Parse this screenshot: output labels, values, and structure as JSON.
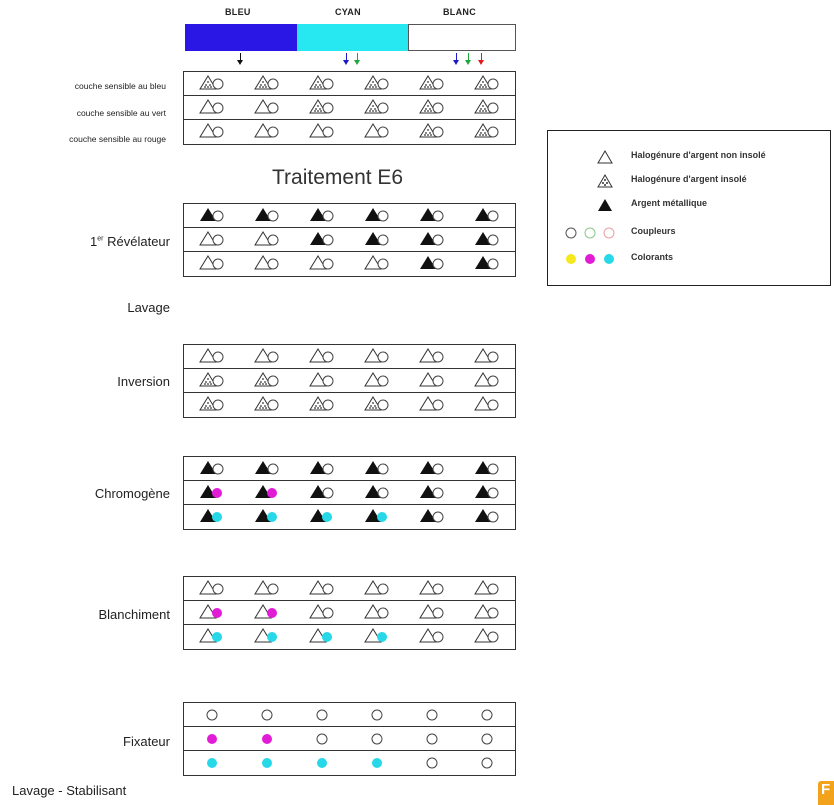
{
  "header": {
    "bleu": "BLEU",
    "cyan": "CYAN",
    "blanc": "BLANC",
    "colors": {
      "bleu": "#2a17e6",
      "cyan": "#27e8f0",
      "blanc": "#ffffff"
    }
  },
  "layer_labels": [
    "couche sensible au bleu",
    "couche sensible au vert",
    "couche sensible au rouge"
  ],
  "title": "Traitement E6",
  "steps": {
    "revelateur_main": "1",
    "revelateur_sup": "er",
    "revelateur_rest": " Révélateur",
    "lavage": "Lavage",
    "inversion": "Inversion",
    "chromogene": "Chromogène",
    "blanchiment": "Blanchiment",
    "fixateur": "Fixateur",
    "lavage_stabilisant": "Lavage - Stabilisant"
  },
  "legend": {
    "items": [
      {
        "icon": "outline-triangle-icon",
        "text": "Halogénure d'argent non insolé"
      },
      {
        "icon": "exposed-triangle-icon",
        "text": "Halogénure d'argent insolé"
      },
      {
        "icon": "black-triangle-icon",
        "text": "Argent métallique"
      },
      {
        "icon": "coupler-circles-icon",
        "text": "Coupleurs"
      },
      {
        "icon": "dye-dots-icon",
        "text": "Colorants"
      }
    ]
  },
  "colors": {
    "yellow": "#f5e81c",
    "magenta": "#e21bd6",
    "cyan": "#27d9e8",
    "outline": "#333333"
  },
  "grids": {
    "exposure": [
      [
        "E",
        "E",
        "E",
        "E",
        "E",
        "E"
      ],
      [
        "O",
        "O",
        "E",
        "E",
        "E",
        "E"
      ],
      [
        "O",
        "O",
        "O",
        "O",
        "E",
        "E"
      ]
    ],
    "revelateur": [
      [
        "B",
        "B",
        "B",
        "B",
        "B",
        "B"
      ],
      [
        "O",
        "O",
        "B",
        "B",
        "B",
        "B"
      ],
      [
        "O",
        "O",
        "O",
        "O",
        "B",
        "B"
      ]
    ],
    "inversion": [
      [
        "O",
        "O",
        "O",
        "O",
        "O",
        "O"
      ],
      [
        "E",
        "E",
        "O",
        "O",
        "O",
        "O"
      ],
      [
        "E",
        "E",
        "E",
        "E",
        "O",
        "O"
      ]
    ],
    "chromogene": [
      [
        "B",
        "B",
        "B",
        "B",
        "B",
        "B"
      ],
      [
        "BM",
        "BM",
        "B",
        "B",
        "B",
        "B"
      ],
      [
        "BC",
        "BC",
        "BC",
        "BC",
        "B",
        "B"
      ]
    ],
    "blanchiment": [
      [
        "O",
        "O",
        "O",
        "O",
        "O",
        "O"
      ],
      [
        "OM",
        "OM",
        "O",
        "O",
        "O",
        "O"
      ],
      [
        "OC",
        "OC",
        "OC",
        "OC",
        "O",
        "O"
      ]
    ],
    "fixateur": [
      [
        "c",
        "c",
        "c",
        "c",
        "c",
        "c"
      ],
      [
        "m",
        "m",
        "c",
        "c",
        "c",
        "c"
      ],
      [
        "y",
        "y",
        "y",
        "y",
        "c",
        "c"
      ]
    ]
  }
}
